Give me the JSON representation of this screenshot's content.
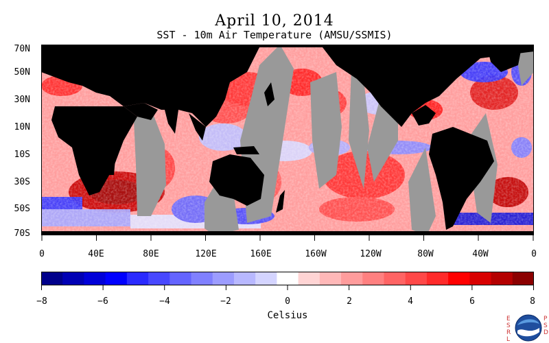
{
  "header": {
    "title": "April 10, 2014",
    "subtitle": "SST - 10m Air Temperature (AMSU/SSMIS)"
  },
  "axes": {
    "latitude_labels": [
      "70N",
      "50N",
      "30N",
      "10N",
      "10S",
      "30S",
      "50S",
      "70S"
    ],
    "longitude_labels": [
      "0",
      "40E",
      "80E",
      "120E",
      "160E",
      "160W",
      "120W",
      "80W",
      "40W",
      "0"
    ]
  },
  "colorbar": {
    "title": "Celsius",
    "tick_labels": [
      "−8",
      "−6",
      "−4",
      "−2",
      "0",
      "2",
      "4",
      "6",
      "8"
    ],
    "range": [
      -8,
      8
    ],
    "colors": [
      "#00008b",
      "#0000b4",
      "#0000d8",
      "#0000ff",
      "#2a2aff",
      "#4848ff",
      "#6464ff",
      "#8080ff",
      "#9c9cff",
      "#b8b8ff",
      "#d4d4ff",
      "#ffffff",
      "#ffd4d4",
      "#ffb8b8",
      "#ff9c9c",
      "#ff8080",
      "#ff6464",
      "#ff4848",
      "#ff2a2a",
      "#ff0000",
      "#d80000",
      "#b40000",
      "#8b0000"
    ]
  },
  "legend_colors": {
    "land": "#000000",
    "no_data": "#999999"
  },
  "logo": {
    "left_letters": "ESRL",
    "right_letters": "PSD",
    "text": "NOAA"
  }
}
